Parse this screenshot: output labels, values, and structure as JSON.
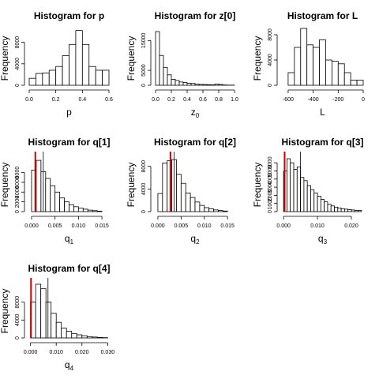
{
  "chart_data": [
    {
      "type": "bar",
      "title": "Histogram for  p",
      "xlabel": "p",
      "xlabel_sub": "",
      "ylabel": "Frequency",
      "xlim": [
        0,
        0.6
      ],
      "ylim": [
        0,
        10000
      ],
      "x_ticks": [
        "0.0",
        "0.2",
        "0.4",
        "0.6"
      ],
      "x_tick_values": [
        0,
        0.2,
        0.4,
        0.6
      ],
      "y_ticks": [
        "0",
        "4000",
        "8000"
      ],
      "y_tick_values": [
        0,
        4000,
        8000
      ],
      "bin_start": 0.0,
      "bin_width": 0.05,
      "values": [
        1300,
        2200,
        2300,
        2800,
        3500,
        5500,
        7600,
        10200,
        7600,
        3500,
        2800,
        2800
      ],
      "ref_lines": []
    },
    {
      "type": "bar",
      "title": "Histogram for  z[0]",
      "xlabel": "z",
      "xlabel_sub": "0",
      "ylabel": "Frequency",
      "xlim": [
        0,
        1.0
      ],
      "ylim": [
        0,
        18000
      ],
      "x_ticks": [
        "0.0",
        "0.2",
        "0.4",
        "0.6",
        "0.8",
        "1.0"
      ],
      "x_tick_values": [
        0,
        0.2,
        0.4,
        0.6,
        0.8,
        1.0
      ],
      "y_ticks": [
        "0",
        "5000",
        "15000"
      ],
      "y_tick_values": [
        0,
        5000,
        15000
      ],
      "bin_start": 0.0,
      "bin_width": 0.05,
      "values": [
        18000,
        10000,
        6000,
        3500,
        2000,
        1600,
        1100,
        900,
        700,
        600,
        400,
        300,
        250,
        200,
        150,
        400,
        300,
        100,
        50,
        50
      ],
      "ref_lines": []
    },
    {
      "type": "bar",
      "title": "Histogram for  L",
      "xlabel": "L",
      "xlabel_sub": "",
      "ylabel": "Frequency",
      "xlim": [
        -650,
        0
      ],
      "ylim": [
        0,
        8500
      ],
      "x_ticks": [
        "-600",
        "-400",
        "-200",
        "0"
      ],
      "x_tick_values": [
        -600,
        -400,
        -200,
        0
      ],
      "y_ticks": [
        "0",
        "4000",
        "8000"
      ],
      "y_tick_values": [
        0,
        4000,
        8000
      ],
      "bin_start": -600,
      "bin_width": 50,
      "values": [
        2000,
        6000,
        9000,
        6400,
        6000,
        7200,
        4000,
        3800,
        3400,
        2000,
        800,
        800
      ],
      "ref_lines": []
    },
    {
      "type": "bar",
      "title": "Histogram for  q[1]",
      "xlabel": "q",
      "xlabel_sub": "1",
      "ylabel": "Frequency",
      "xlim": [
        -0.0005,
        0.0165
      ],
      "ylim": [
        0,
        11000
      ],
      "x_ticks": [
        "0.000",
        "0.005",
        "0.010",
        "0.015"
      ],
      "x_tick_values": [
        0,
        0.005,
        0.01,
        0.015
      ],
      "y_ticks": [
        "0",
        "2000",
        "4000",
        "6000",
        "8000"
      ],
      "y_tick_values": [
        0,
        2000,
        4000,
        6000,
        8000
      ],
      "bin_start": 0.0,
      "bin_width": 0.001,
      "values": [
        8500,
        10500,
        8200,
        6800,
        5300,
        4000,
        2800,
        2000,
        1400,
        1000,
        700,
        500,
        300,
        200,
        100
      ],
      "ref_lines": [
        {
          "value": 0.0008,
          "color": "#cc0000"
        },
        {
          "value": 0.0025,
          "color": "#000000"
        }
      ]
    },
    {
      "type": "bar",
      "title": "Histogram for  q[2]",
      "xlabel": "q",
      "xlabel_sub": "2",
      "ylabel": "Frequency",
      "xlim": [
        -0.0005,
        0.0165
      ],
      "ylim": [
        0,
        9500
      ],
      "x_ticks": [
        "0.000",
        "0.005",
        "0.010",
        "0.015"
      ],
      "x_tick_values": [
        0,
        0.005,
        0.01,
        0.015
      ],
      "y_ticks": [
        "0",
        "4000",
        "8000"
      ],
      "y_tick_values": [
        0,
        4000,
        8000
      ],
      "bin_start": 0.0,
      "bin_width": 0.001,
      "values": [
        3200,
        8600,
        9000,
        9200,
        6600,
        5000,
        3300,
        2500,
        1700,
        1100,
        700,
        500,
        300,
        200,
        100
      ],
      "ref_lines": [
        {
          "value": 0.0027,
          "color": "#cc0000"
        },
        {
          "value": 0.0035,
          "color": "#000000"
        }
      ]
    },
    {
      "type": "bar",
      "title": "Histogram for  q[3]",
      "xlabel": "q",
      "xlabel_sub": "3",
      "ylabel": "Frequency",
      "xlim": [
        -0.0005,
        0.0235
      ],
      "ylim": [
        0,
        6600
      ],
      "x_ticks": [
        "0.000",
        "0.010",
        "0.020"
      ],
      "x_tick_values": [
        0,
        0.01,
        0.02
      ],
      "y_ticks": [
        "0",
        "1000",
        "2000",
        "3000",
        "4000",
        "5000",
        "6000"
      ],
      "y_tick_values": [
        0,
        1000,
        2000,
        3000,
        4000,
        5000,
        6000
      ],
      "bin_start": 0.0,
      "bin_width": 0.001,
      "values": [
        5000,
        6500,
        6000,
        5200,
        5500,
        4200,
        3800,
        3200,
        2700,
        2300,
        1900,
        1500,
        1200,
        900,
        700,
        550,
        450,
        350,
        300,
        250,
        200,
        150,
        150
      ],
      "ref_lines": [
        {
          "value": 0.0003,
          "color": "#cc0000"
        },
        {
          "value": 0.005,
          "color": "#000000"
        }
      ]
    },
    {
      "type": "bar",
      "title": "Histogram for  q[4]",
      "xlabel": "q",
      "xlabel_sub": "4",
      "ylabel": "Frequency",
      "xlim": [
        -0.0005,
        0.0305
      ],
      "ylim": [
        0,
        12000
      ],
      "x_ticks": [
        "0.000",
        "0.010",
        "0.020",
        "0.030"
      ],
      "x_tick_values": [
        0,
        0.01,
        0.02,
        0.03
      ],
      "y_ticks": [
        "0",
        "4000",
        "8000"
      ],
      "y_tick_values": [
        0,
        4000,
        8000
      ],
      "bin_start": 0.0,
      "bin_width": 0.002,
      "values": [
        8000,
        12000,
        11000,
        8000,
        5500,
        3500,
        2200,
        1500,
        1000,
        700,
        500,
        300,
        200,
        100,
        60
      ],
      "ref_lines": [
        {
          "value": 0.0002,
          "color": "#cc0000"
        },
        {
          "value": 0.0068,
          "color": "#000000"
        }
      ]
    }
  ]
}
